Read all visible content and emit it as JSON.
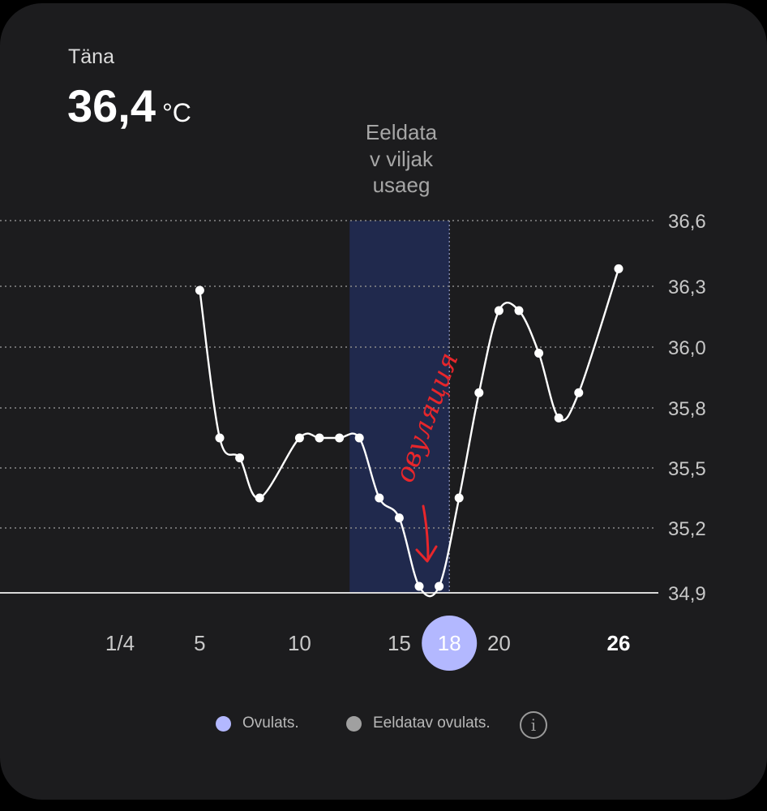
{
  "header": {
    "today_label": "Täna",
    "today_value": "36,4",
    "today_unit": "°C"
  },
  "fertile_window_label": "Eeldata\nv viljak\nusaeg",
  "annotation": {
    "handwritten_text": "овуляция",
    "color": "#e8262b"
  },
  "legend": {
    "ovulation": {
      "label": "Ovulats.",
      "color": "#b3b8ff"
    },
    "expected_ovulation": {
      "label": "Eeldatav ovulats.",
      "color": "#a0a0a0"
    },
    "info_icon": "info-icon"
  },
  "colors": {
    "background": "#1c1c1e",
    "line": "#ffffff",
    "fertile_window": "#20294d",
    "selected_day": "#b3b8ff"
  },
  "chart_data": {
    "type": "line",
    "ylabel": "°C",
    "ylim": [
      34.9,
      36.6
    ],
    "y_ticks": [
      34.9,
      35.2,
      35.5,
      35.8,
      36.0,
      36.3,
      36.6
    ],
    "y_tick_labels": [
      "34,9",
      "35,2",
      "35,5",
      "35,8",
      "36,0",
      "36,3",
      "36,6"
    ],
    "x_ticks": [
      1,
      5,
      10,
      15,
      18,
      20,
      26
    ],
    "x_tick_labels": [
      "1/4",
      "5",
      "10",
      "15",
      "18",
      "20",
      "26"
    ],
    "today_day": 26,
    "selected_day": 18,
    "fertile_window": [
      13,
      18
    ],
    "grid": true,
    "series": [
      {
        "x": [
          5,
          6,
          7,
          8,
          10,
          11,
          12,
          13,
          14,
          15,
          16,
          17,
          18,
          19,
          20,
          21,
          22,
          23,
          24,
          26
        ],
        "values": [
          36.28,
          35.65,
          35.55,
          35.35,
          35.65,
          35.65,
          35.65,
          35.65,
          35.35,
          35.25,
          34.93,
          34.93,
          35.35,
          35.85,
          36.18,
          36.18,
          35.98,
          35.75,
          35.85,
          36.38
        ]
      }
    ]
  }
}
